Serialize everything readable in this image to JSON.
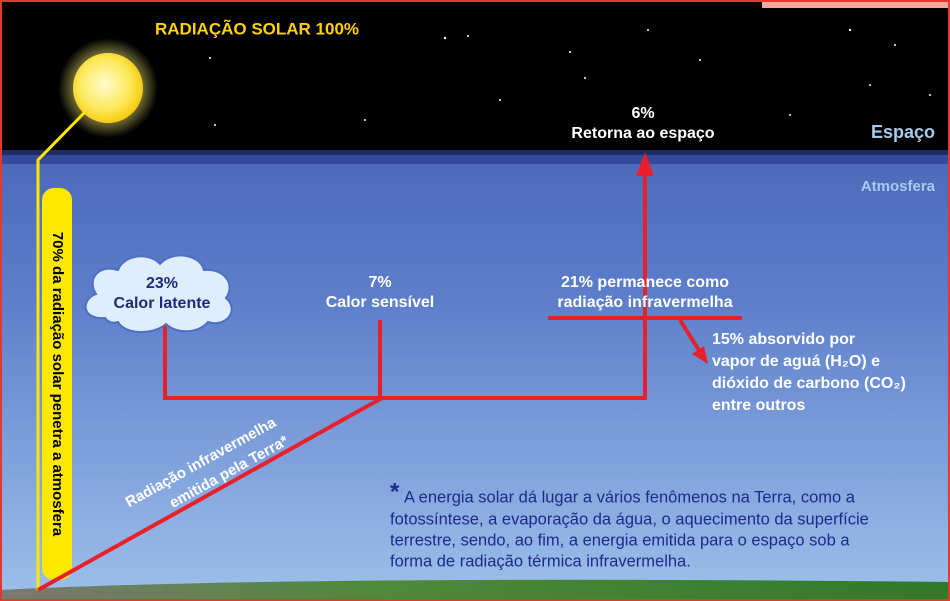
{
  "sun": {
    "label": "RADIAÇÃO SOLAR 100%"
  },
  "space": {
    "label": "Espaço",
    "return_value": "6%",
    "return_label": "Retorna ao espaço"
  },
  "atmosphere": {
    "label": "Atmosfera"
  },
  "penetration": {
    "label": "70% da radiação solar penetra a atmosfera"
  },
  "latent_heat": {
    "value": "23%",
    "label": "Calor latente"
  },
  "sensible_heat": {
    "value": "7%",
    "label": "Calor sensível"
  },
  "infrared_remaining": {
    "lines": [
      "21% permanece como",
      "radiação infravermelha"
    ]
  },
  "absorbed": {
    "lines": [
      "15% absorvido por",
      "vapor de aguá (H₂O) e",
      "dióxido de carbono (CO₂)",
      "entre outros"
    ]
  },
  "earth_emission": {
    "lines": [
      "Radiação infravermelha",
      "emitida pela Terra*"
    ]
  },
  "footnote": {
    "marker": "*",
    "lines": [
      "A energia solar dá lugar a vários fenômenos na Terra, como a",
      "fotossíntese, a evaporação da água, o aquecimento da superfície",
      "terrestre, sendo, ao fim, a energia emitida para o espaço sob a",
      "forma de radiação térmica infravermelha."
    ]
  }
}
